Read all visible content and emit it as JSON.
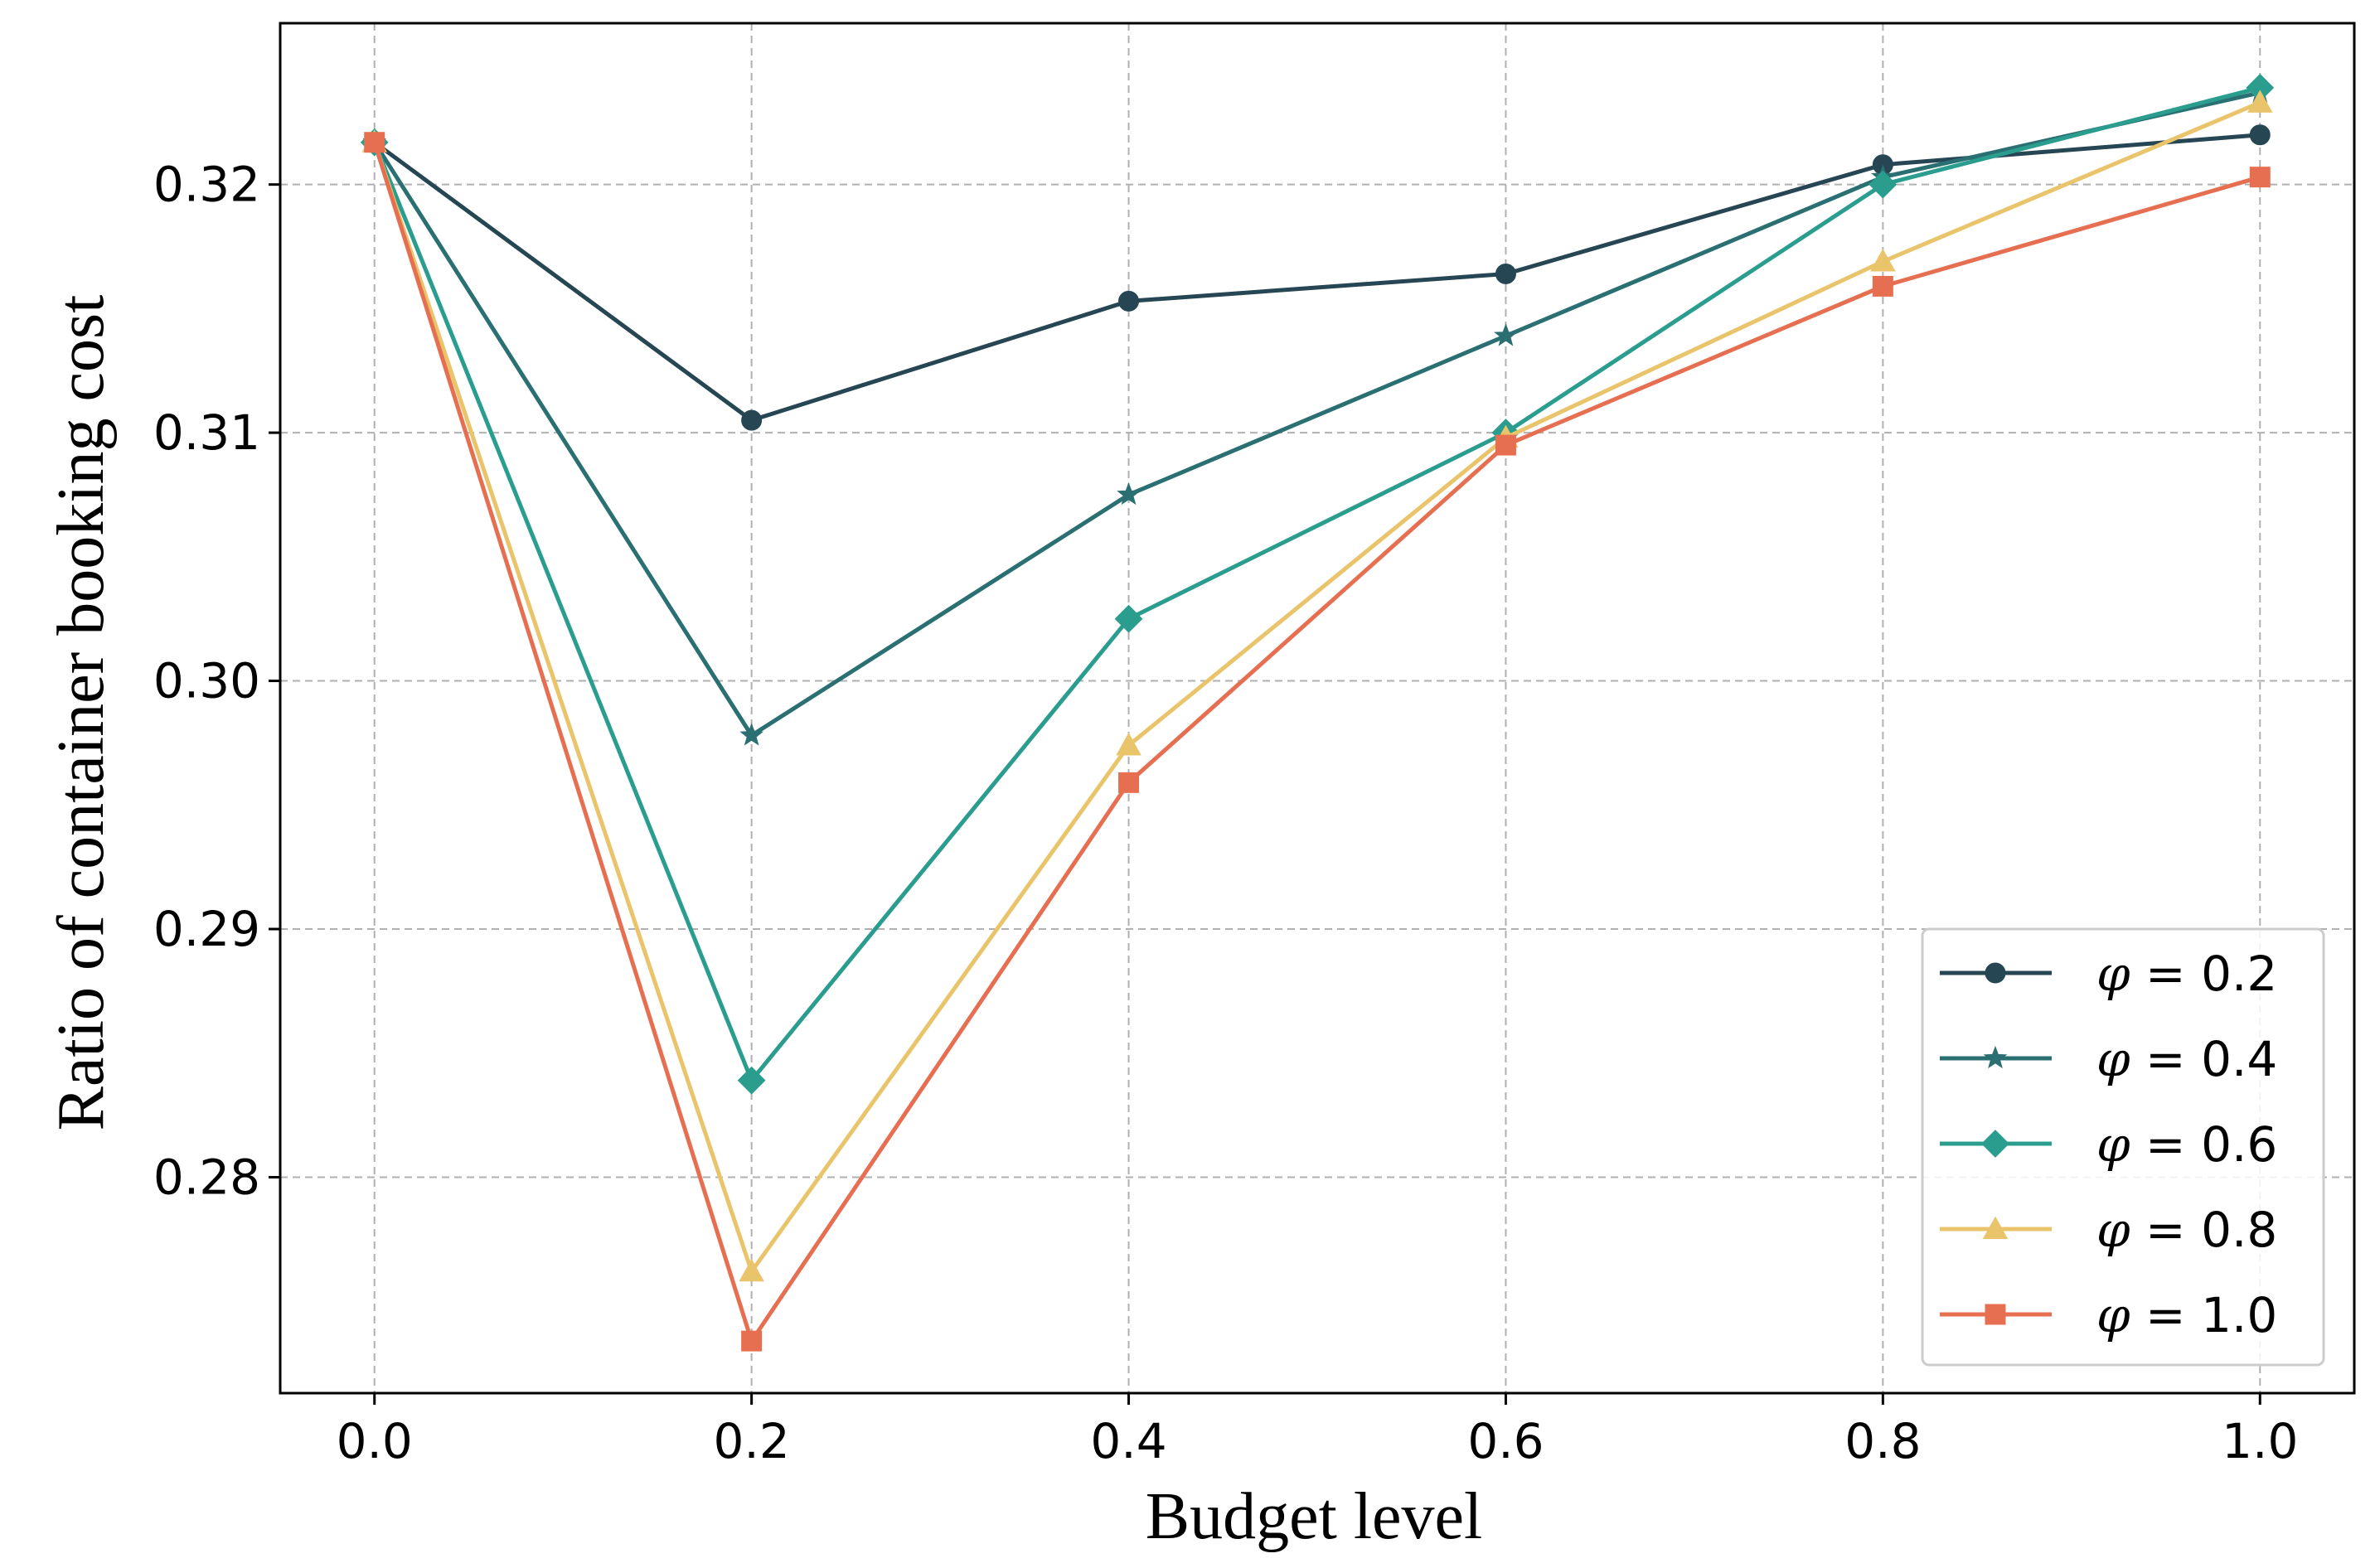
{
  "chart_data": {
    "type": "line",
    "title": "",
    "xlabel": "Budget level",
    "ylabel": "Ratio of container booking cost",
    "x": [
      0.0,
      0.2,
      0.4,
      0.6,
      0.8,
      1.0
    ],
    "xticks": [
      "0.0",
      "0.2",
      "0.4",
      "0.6",
      "0.8",
      "1.0"
    ],
    "yticks": [
      "0.28",
      "0.29",
      "0.30",
      "0.31",
      "0.32"
    ],
    "ytick_values": [
      0.28,
      0.29,
      0.3,
      0.31,
      0.32
    ],
    "xlim": [
      -0.05,
      1.05
    ],
    "ylim": [
      0.2713,
      0.3265
    ],
    "grid": true,
    "legend_position": "bottom-right",
    "series": [
      {
        "name": "φ = 0.2",
        "symbol": "φ",
        "label_rest": " = 0.2",
        "marker": "circle",
        "color": "#264653",
        "values": [
          0.3217,
          0.3105,
          0.3153,
          0.3164,
          0.3208,
          0.322
        ]
      },
      {
        "name": "φ = 0.4",
        "symbol": "φ",
        "label_rest": " = 0.4",
        "marker": "star",
        "color": "#2a6f72",
        "values": [
          0.3217,
          0.2978,
          0.3075,
          0.3139,
          0.3203,
          0.3237
        ]
      },
      {
        "name": "φ = 0.6",
        "symbol": "φ",
        "label_rest": " = 0.6",
        "marker": "diamond",
        "color": "#2a9d8f",
        "values": [
          0.3217,
          0.2839,
          0.3025,
          0.31,
          0.32,
          0.3239
        ]
      },
      {
        "name": "φ = 0.8",
        "symbol": "φ",
        "label_rest": " = 0.8",
        "marker": "triangle",
        "color": "#e9c46a",
        "values": [
          0.3217,
          0.2762,
          0.2974,
          0.3098,
          0.3169,
          0.3233
        ]
      },
      {
        "name": "φ = 1.0",
        "symbol": "φ",
        "label_rest": " = 1.0",
        "marker": "square",
        "color": "#e76f51",
        "values": [
          0.3217,
          0.2734,
          0.2959,
          0.3095,
          0.3159,
          0.3203
        ]
      }
    ]
  }
}
